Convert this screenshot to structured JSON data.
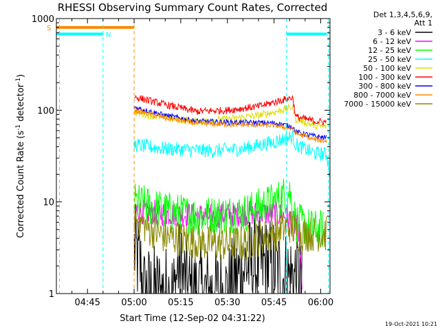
{
  "chart_data": {
    "type": "line",
    "title": "RHESSI Observing Summary Count Rates, Corrected",
    "xlabel": "Start Time (12-Sep-02 04:31:22)",
    "ylabel_main": "Corrected Count Rate (s",
    "ylabel_sup1": "-1",
    "ylabel_mid": " detector",
    "ylabel_sup2": "-1",
    "ylabel_end": ")",
    "y_scale": "log",
    "ylim": [
      1,
      1000
    ],
    "xlim_minutes": [
      -25,
      63
    ],
    "x_ticks": [
      {
        "label": "04:45",
        "m": -15
      },
      {
        "label": "05:00",
        "m": 0
      },
      {
        "label": "05:15",
        "m": 15
      },
      {
        "label": "05:30",
        "m": 30
      },
      {
        "label": "05:45",
        "m": 45
      },
      {
        "label": "06:00",
        "m": 60
      }
    ],
    "y_ticks": [
      {
        "label": "1",
        "v": 1
      },
      {
        "label": "10",
        "v": 10
      },
      {
        "label": "100",
        "v": 100
      },
      {
        "label": "1000",
        "v": 1000
      }
    ],
    "legend": {
      "placement": "top-right-outside",
      "header1": "Det 1,3,4,5,6,9,",
      "header2": "Att 1"
    },
    "series": [
      {
        "name": "3 - 6 keV",
        "color": "#000000",
        "noise": 0.55,
        "points": [
          [
            0,
            3
          ],
          [
            2,
            2
          ],
          [
            3,
            1
          ],
          [
            13,
            1
          ],
          [
            14,
            2
          ],
          [
            18,
            1
          ],
          [
            30,
            1
          ],
          [
            36,
            2
          ],
          [
            45,
            2
          ],
          [
            47,
            1.5
          ],
          [
            53,
            1.5
          ],
          [
            54,
            1
          ]
        ]
      },
      {
        "name": "6 - 12 keV",
        "color": "#ff00ff",
        "noise": 0.14,
        "points": [
          [
            0,
            8
          ],
          [
            10,
            7.5
          ],
          [
            25,
            7
          ],
          [
            35,
            7.5
          ],
          [
            45,
            7.5
          ],
          [
            49,
            7
          ],
          [
            53,
            5
          ],
          [
            54,
            1
          ]
        ]
      },
      {
        "name": "12 - 25 keV",
        "color": "#00ff00",
        "noise": 0.22,
        "points": [
          [
            0,
            10
          ],
          [
            10,
            8
          ],
          [
            20,
            7
          ],
          [
            35,
            7.5
          ],
          [
            45,
            10
          ],
          [
            50,
            13
          ],
          [
            52,
            6
          ],
          [
            58,
            5
          ],
          [
            61,
            5
          ]
        ]
      },
      {
        "name": "25 - 50 keV",
        "color": "#00ffff",
        "noise": 0.08,
        "points": [
          [
            0,
            42
          ],
          [
            10,
            38
          ],
          [
            25,
            36
          ],
          [
            35,
            38
          ],
          [
            45,
            45
          ],
          [
            51,
            52
          ],
          [
            52,
            42
          ],
          [
            58,
            34
          ],
          [
            62,
            33
          ],
          [
            63,
            20
          ]
        ]
      },
      {
        "name": "50 - 100 keV",
        "color": "#dddd00",
        "noise": 0.04,
        "points": [
          [
            0,
            95
          ],
          [
            10,
            82
          ],
          [
            20,
            75
          ],
          [
            30,
            80
          ],
          [
            40,
            88
          ],
          [
            45,
            95
          ],
          [
            51,
            108
          ],
          [
            52,
            80
          ],
          [
            58,
            68
          ],
          [
            62,
            66
          ]
        ]
      },
      {
        "name": "100 - 300 keV",
        "color": "#ff0000",
        "noise": 0.04,
        "points": [
          [
            0,
            140
          ],
          [
            10,
            115
          ],
          [
            20,
            97
          ],
          [
            30,
            100
          ],
          [
            40,
            110
          ],
          [
            46,
            125
          ],
          [
            51,
            138
          ],
          [
            52,
            85
          ],
          [
            58,
            76
          ],
          [
            62,
            74
          ]
        ]
      },
      {
        "name": "300 - 800 keV",
        "color": "#0000ff",
        "noise": 0.03,
        "points": [
          [
            0,
            108
          ],
          [
            10,
            88
          ],
          [
            20,
            76
          ],
          [
            30,
            74
          ],
          [
            40,
            73
          ],
          [
            46,
            72
          ],
          [
            51,
            66
          ],
          [
            52,
            58
          ],
          [
            58,
            52
          ],
          [
            62,
            50
          ]
        ]
      },
      {
        "name": "800 - 7000 keV",
        "color": "#ff8800",
        "noise": 0.03,
        "points": [
          [
            0,
            100
          ],
          [
            10,
            83
          ],
          [
            20,
            72
          ],
          [
            30,
            70
          ],
          [
            40,
            69
          ],
          [
            46,
            68
          ],
          [
            51,
            62
          ],
          [
            52,
            56
          ],
          [
            58,
            48
          ],
          [
            62,
            46
          ]
        ]
      },
      {
        "name": "7000 - 15000 keV",
        "color": "#888800",
        "noise": 0.2,
        "points": [
          [
            0,
            7
          ],
          [
            5,
            5
          ],
          [
            10,
            4.2
          ],
          [
            25,
            3.5
          ],
          [
            35,
            3.5
          ],
          [
            45,
            4.5
          ],
          [
            50,
            5.5
          ],
          [
            53,
            4.5
          ],
          [
            58,
            4.5
          ],
          [
            62,
            4.5
          ]
        ]
      }
    ],
    "state_bars": [
      {
        "color": "#ff8800",
        "value": 800,
        "x": [
          -25,
          0
        ],
        "label": "S"
      },
      {
        "color": "#00ffff",
        "value": 680,
        "x": [
          -25,
          -10
        ],
        "label": "N"
      },
      {
        "color": "#00ffff",
        "value": 680,
        "x": [
          49,
          62
        ],
        "label": ""
      }
    ],
    "vlines": [
      {
        "color": "#00ffff",
        "m": -24
      },
      {
        "color": "#00ffff",
        "m": -10
      },
      {
        "color": "#ff8800",
        "m": 0
      },
      {
        "color": "#00ffff",
        "m": 49
      },
      {
        "color": "#00ffff",
        "m": 62.5
      }
    ],
    "timestamp": "19-Oct-2021 10:21"
  }
}
